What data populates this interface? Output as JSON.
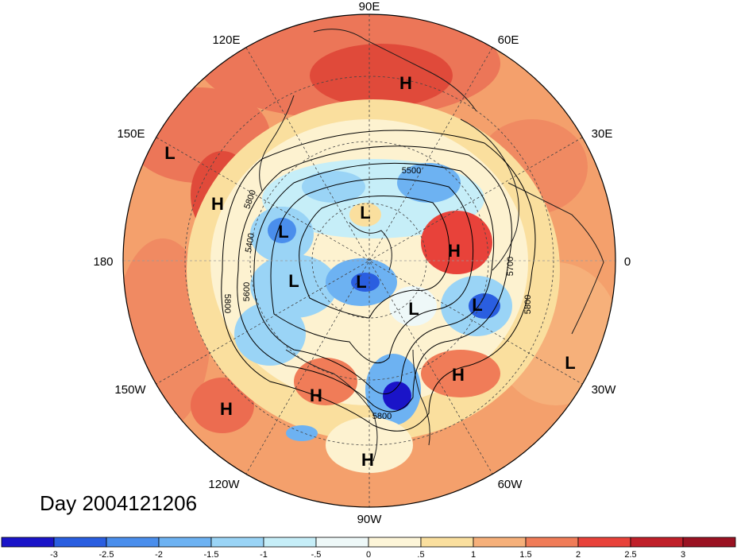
{
  "title": "Day 2004121206",
  "lon_labels": [
    "90E",
    "60E",
    "30E",
    "0",
    "30W",
    "60W",
    "90W",
    "120W",
    "150W",
    "180",
    "150E",
    "120E"
  ],
  "pressure_centers": [
    {
      "type": "H",
      "label": "H"
    },
    {
      "type": "L",
      "label": "L"
    },
    {
      "type": "H",
      "label": "H"
    },
    {
      "type": "L",
      "label": "L"
    },
    {
      "type": "L",
      "label": "L"
    },
    {
      "type": "L",
      "label": "L"
    },
    {
      "type": "L",
      "label": "L"
    },
    {
      "type": "H",
      "label": "H"
    },
    {
      "type": "L",
      "label": "L"
    },
    {
      "type": "L",
      "label": "L"
    },
    {
      "type": "H",
      "label": "H"
    },
    {
      "type": "L",
      "label": "L"
    },
    {
      "type": "H",
      "label": "H"
    },
    {
      "type": "H",
      "label": "H"
    },
    {
      "type": "H",
      "label": "H"
    }
  ],
  "contour_labels": [
    "5500",
    "5800",
    "5400",
    "5600",
    "5800",
    "5700",
    "5800",
    "5800"
  ],
  "colorbar": {
    "tick_labels": [
      "-3",
      "-2.5",
      "-2",
      "-1.5",
      "-1",
      "-.5",
      "0",
      ".5",
      "1",
      "1.5",
      "2",
      "2.5",
      "3"
    ],
    "colors": [
      "#1a14c8",
      "#2a5ee0",
      "#4a8eec",
      "#6db2f2",
      "#9ad4f6",
      "#c6eef8",
      "#eef8f8",
      "#fdf5d8",
      "#fadf9e",
      "#f6b07a",
      "#f07c58",
      "#e8423a",
      "#c0202a",
      "#9a1222"
    ]
  }
}
